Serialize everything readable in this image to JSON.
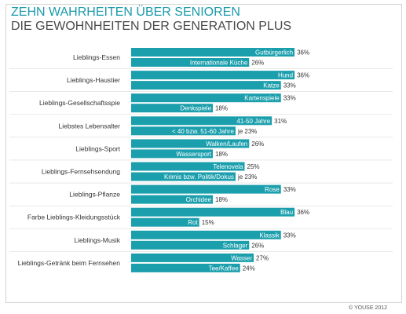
{
  "title": "ZEHN WAHRHEITEN ÜBER SENIOREN",
  "subtitle": "DIE GEWOHNHEITEN DER GENERATION PLUS",
  "copyright": "© YOUSE 2012",
  "colors": {
    "bar": "#1c9fad",
    "title": "#1a9aab",
    "text": "#333333",
    "separator": "#d9d9d9"
  },
  "chart_data": {
    "type": "bar",
    "orientation": "horizontal",
    "xlim": [
      0,
      40
    ],
    "unit": "%",
    "groups": [
      {
        "category": "Lieblings-Essen",
        "items": [
          {
            "label": "Gutbürgerlich",
            "value": 36
          },
          {
            "label": "Internationale Küche",
            "value": 26
          }
        ]
      },
      {
        "category": "Lieblings-Haustier",
        "items": [
          {
            "label": "Hund",
            "value": 36
          },
          {
            "label": "Katze",
            "value": 33
          }
        ]
      },
      {
        "category": "Lieblings-Gesellschaftsspie",
        "items": [
          {
            "label": "Kartenspiele",
            "value": 33
          },
          {
            "label": "Denkspiele",
            "value": 18
          }
        ]
      },
      {
        "category": "Liebstes Lebensalter",
        "items": [
          {
            "label": "41-50 Jahre",
            "value": 31
          },
          {
            "label": "< 40 bzw. 51-60 Jahre",
            "value": 23,
            "value_prefix": "je"
          }
        ]
      },
      {
        "category": "Lieblings-Sport",
        "items": [
          {
            "label": "Walken/Laufen",
            "value": 26
          },
          {
            "label": "Wassersport",
            "value": 18
          }
        ]
      },
      {
        "category": "Lieblings-Fernsehsendung",
        "items": [
          {
            "label": "Telenovela",
            "value": 25
          },
          {
            "label": "Krimis bzw. Politik/Dokus",
            "value": 23,
            "value_prefix": "je"
          }
        ]
      },
      {
        "category": "Lieblings-Pflanze",
        "items": [
          {
            "label": "Rose",
            "value": 33
          },
          {
            "label": "Orchidee",
            "value": 18
          }
        ]
      },
      {
        "category": "Farbe Lieblings-Kleidungsstück",
        "items": [
          {
            "label": "Blau",
            "value": 36
          },
          {
            "label": "Rot",
            "value": 15
          }
        ]
      },
      {
        "category": "Lieblings-Musik",
        "items": [
          {
            "label": "Klassik",
            "value": 33
          },
          {
            "label": "Schlager",
            "value": 26
          }
        ]
      },
      {
        "category": "Lieblings-Getränk beim Fernsehen",
        "items": [
          {
            "label": "Wasser",
            "value": 27
          },
          {
            "label": "Tee/Kaffee",
            "value": 24
          }
        ]
      }
    ]
  }
}
